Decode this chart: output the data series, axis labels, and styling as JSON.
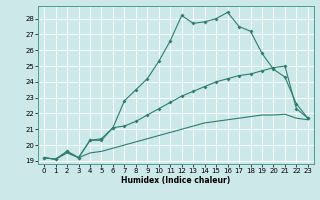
{
  "xlabel": "Humidex (Indice chaleur)",
  "bg_color": "#cce8e8",
  "grid_color": "#ffffff",
  "line_color": "#2e7d6e",
  "xlim": [
    -0.5,
    23.5
  ],
  "ylim": [
    18.8,
    28.8
  ],
  "yticks": [
    19,
    20,
    21,
    22,
    23,
    24,
    25,
    26,
    27,
    28
  ],
  "xticks": [
    0,
    1,
    2,
    3,
    4,
    5,
    6,
    7,
    8,
    9,
    10,
    11,
    12,
    13,
    14,
    15,
    16,
    17,
    18,
    19,
    20,
    21,
    22,
    23
  ],
  "curve1_x": [
    0,
    1,
    2,
    3,
    4,
    5,
    6,
    7,
    8,
    9,
    10,
    11,
    12,
    13,
    14,
    15,
    16,
    17,
    18,
    19,
    20,
    21,
    22,
    23
  ],
  "curve1_y": [
    19.2,
    19.1,
    19.6,
    19.2,
    20.3,
    20.3,
    21.1,
    22.8,
    23.5,
    24.2,
    25.3,
    26.6,
    28.2,
    27.7,
    27.8,
    28.0,
    28.4,
    27.5,
    27.2,
    25.8,
    24.8,
    24.3,
    22.6,
    21.7
  ],
  "curve2_x": [
    0,
    1,
    2,
    3,
    4,
    5,
    6,
    7,
    8,
    9,
    10,
    11,
    12,
    13,
    14,
    15,
    16,
    17,
    18,
    19,
    20,
    21,
    22,
    23
  ],
  "curve2_y": [
    19.2,
    19.1,
    19.6,
    19.2,
    20.3,
    20.4,
    21.1,
    21.2,
    21.5,
    21.9,
    22.3,
    22.7,
    23.1,
    23.4,
    23.7,
    24.0,
    24.2,
    24.4,
    24.5,
    24.7,
    24.9,
    25.0,
    22.3,
    21.7
  ],
  "curve3_x": [
    0,
    1,
    2,
    3,
    4,
    5,
    6,
    7,
    8,
    9,
    10,
    11,
    12,
    13,
    14,
    15,
    16,
    17,
    18,
    19,
    20,
    21,
    22,
    23
  ],
  "curve3_y": [
    19.2,
    19.1,
    19.5,
    19.2,
    19.5,
    19.6,
    19.8,
    20.0,
    20.2,
    20.4,
    20.6,
    20.8,
    21.0,
    21.2,
    21.4,
    21.5,
    21.6,
    21.7,
    21.8,
    21.9,
    21.9,
    21.95,
    21.7,
    21.6
  ]
}
